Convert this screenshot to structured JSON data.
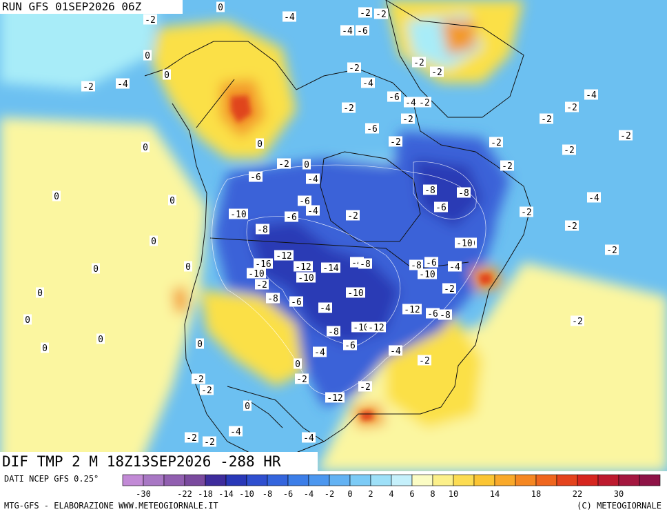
{
  "header": {
    "run_title": "RUN GFS 01SEP2026 06Z",
    "field_title": "DIF TMP 2 M 18Z13SEP2026 -288 HR"
  },
  "footer": {
    "source": "DATI NCEP GFS 0.25°",
    "credit_left": "MTG-GFS - ELABORAZIONE WWW.METEOGIORNALE.IT",
    "credit_right": "(C) METEOGIORNALE"
  },
  "legend": {
    "colors": [
      "#c28ad6",
      "#a877c4",
      "#915fb0",
      "#7a4a9e",
      "#3e2c9c",
      "#2938b8",
      "#2f4fcf",
      "#3465dd",
      "#3c7ee8",
      "#4c97ef",
      "#63b2f3",
      "#7ccbf6",
      "#9ee0f8",
      "#c5f0fb",
      "#fbfcc4",
      "#fcf08a",
      "#fcdc52",
      "#fbc533",
      "#f9a92a",
      "#f58722",
      "#ef661e",
      "#e4431d",
      "#d6261f",
      "#bd1a2e",
      "#a4173f",
      "#8e1346"
    ],
    "tick_labels": [
      "-30",
      "-22",
      "-18",
      "-14",
      "-10",
      "-8",
      "-6",
      "-4",
      "-2",
      "0",
      "2",
      "4",
      "6",
      "8",
      "10",
      "14",
      "18",
      "22",
      "30"
    ]
  },
  "map": {
    "anomaly_colors": {
      "deep_blue": "#2a3ab5",
      "blue": "#3a62d8",
      "light_blue": "#6cc0f1",
      "cyan": "#a8ecf8",
      "pale_yellow": "#fbf6a0",
      "yellow": "#fbe046",
      "orange": "#f39a2a",
      "red": "#e0451d"
    },
    "labels": [
      {
        "id": "l1",
        "text": "0"
      },
      {
        "id": "l2",
        "text": "-2"
      },
      {
        "id": "l3",
        "text": "-4"
      },
      {
        "id": "l4",
        "text": "-2"
      },
      {
        "id": "l5",
        "text": "-2"
      },
      {
        "id": "l6",
        "text": "-4"
      },
      {
        "id": "l7",
        "text": "-6"
      },
      {
        "id": "l8",
        "text": "0"
      },
      {
        "id": "l9",
        "text": "0"
      },
      {
        "id": "l10",
        "text": "-2"
      },
      {
        "id": "l11",
        "text": "-4"
      },
      {
        "id": "l12",
        "text": "-2"
      },
      {
        "id": "l13",
        "text": "-2"
      },
      {
        "id": "l14",
        "text": "-2"
      },
      {
        "id": "l15",
        "text": "-4"
      },
      {
        "id": "l16",
        "text": "-6"
      },
      {
        "id": "l17",
        "text": "-2"
      },
      {
        "id": "l18",
        "text": "-2"
      },
      {
        "id": "l19",
        "text": "-4"
      },
      {
        "id": "l20",
        "text": "-2"
      },
      {
        "id": "l21",
        "text": "-6"
      },
      {
        "id": "l22",
        "text": "0"
      },
      {
        "id": "l23",
        "text": "0"
      },
      {
        "id": "l24",
        "text": "-2"
      },
      {
        "id": "l25",
        "text": "-2"
      },
      {
        "id": "l26",
        "text": "0"
      },
      {
        "id": "l27",
        "text": "-2"
      },
      {
        "id": "l28",
        "text": "-6"
      },
      {
        "id": "l29",
        "text": "-4"
      },
      {
        "id": "l30",
        "text": "-8"
      },
      {
        "id": "l31",
        "text": "-6"
      },
      {
        "id": "l32",
        "text": "-4"
      },
      {
        "id": "l33",
        "text": "-10"
      },
      {
        "id": "l34",
        "text": "-8"
      },
      {
        "id": "l35",
        "text": "-6"
      },
      {
        "id": "l36",
        "text": "-8"
      },
      {
        "id": "l37",
        "text": "-6"
      },
      {
        "id": "l38",
        "text": "-2"
      },
      {
        "id": "l39",
        "text": "-10"
      },
      {
        "id": "l40",
        "text": "-12"
      },
      {
        "id": "l41",
        "text": "-16"
      },
      {
        "id": "l42",
        "text": "-12"
      },
      {
        "id": "l43",
        "text": "-14"
      },
      {
        "id": "l44",
        "text": "-4"
      },
      {
        "id": "l45",
        "text": "-8"
      },
      {
        "id": "l46",
        "text": "-10"
      },
      {
        "id": "l47",
        "text": "-10"
      },
      {
        "id": "l48",
        "text": "-10"
      },
      {
        "id": "l49",
        "text": "-8"
      },
      {
        "id": "l50",
        "text": "-6"
      },
      {
        "id": "l51",
        "text": "-4"
      },
      {
        "id": "l52",
        "text": "-12"
      },
      {
        "id": "l53",
        "text": "-10"
      },
      {
        "id": "l54",
        "text": "-12"
      },
      {
        "id": "l55",
        "text": "-8"
      },
      {
        "id": "l56",
        "text": "-6"
      },
      {
        "id": "l57",
        "text": "-4"
      },
      {
        "id": "l58",
        "text": "-2"
      },
      {
        "id": "l59",
        "text": "-10"
      },
      {
        "id": "l60",
        "text": "-12"
      },
      {
        "id": "l61",
        "text": "-2"
      },
      {
        "id": "l62",
        "text": "-4"
      },
      {
        "id": "l63",
        "text": "-2"
      },
      {
        "id": "l64",
        "text": "-2"
      },
      {
        "id": "l65",
        "text": "-4"
      },
      {
        "id": "l66",
        "text": "-2"
      },
      {
        "id": "l67",
        "text": "-2"
      },
      {
        "id": "l68",
        "text": "-2"
      },
      {
        "id": "l69",
        "text": "-2"
      },
      {
        "id": "l70",
        "text": "-4"
      },
      {
        "id": "l71",
        "text": "-2"
      },
      {
        "id": "l72",
        "text": "-2"
      },
      {
        "id": "l73",
        "text": "-2"
      },
      {
        "id": "l74",
        "text": "0"
      },
      {
        "id": "l75",
        "text": "0"
      },
      {
        "id": "l76",
        "text": "0"
      },
      {
        "id": "l77",
        "text": "0"
      },
      {
        "id": "l78",
        "text": "0"
      },
      {
        "id": "l79",
        "text": "0"
      },
      {
        "id": "l80",
        "text": "0"
      },
      {
        "id": "l81",
        "text": "0"
      },
      {
        "id": "l82",
        "text": "0"
      },
      {
        "id": "l83",
        "text": "0"
      },
      {
        "id": "l84",
        "text": "0"
      },
      {
        "id": "l85",
        "text": "-2"
      },
      {
        "id": "l86",
        "text": "-2"
      },
      {
        "id": "l87",
        "text": "-4"
      },
      {
        "id": "l88",
        "text": "-4"
      },
      {
        "id": "l89",
        "text": "-2"
      },
      {
        "id": "l90",
        "text": "-2"
      },
      {
        "id": "l91",
        "text": "-2"
      },
      {
        "id": "l92",
        "text": "-2"
      },
      {
        "id": "l93",
        "text": "0"
      },
      {
        "id": "l94",
        "text": "-2"
      },
      {
        "id": "l95",
        "text": "-6"
      },
      {
        "id": "l96",
        "text": "-4"
      },
      {
        "id": "l97",
        "text": "-8"
      },
      {
        "id": "l98",
        "text": "-6"
      },
      {
        "id": "l99",
        "text": "-10"
      },
      {
        "id": "l100",
        "text": "-8"
      }
    ]
  }
}
